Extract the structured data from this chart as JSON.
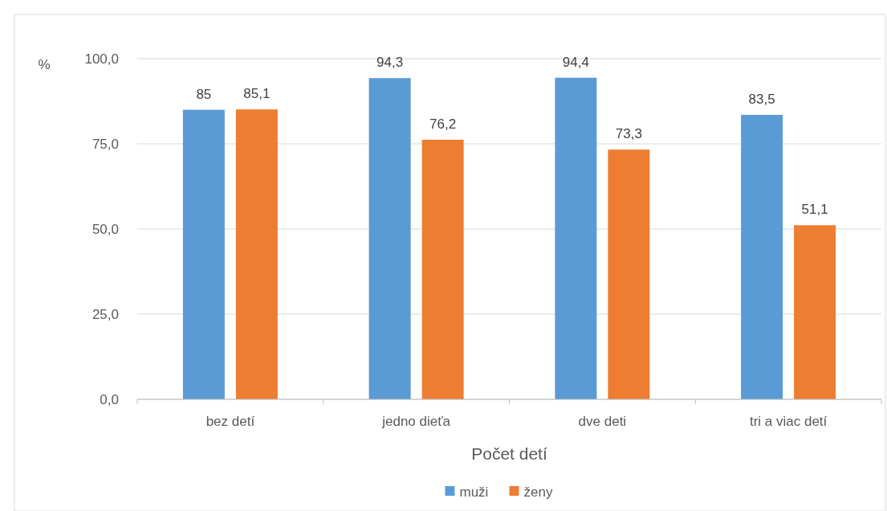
{
  "chart_data": {
    "type": "bar",
    "xlabel": "Počet detí",
    "ylabel": "%",
    "categories": [
      "bez detí",
      "jedno dieťa",
      "dve deti",
      "tri a viac detí"
    ],
    "series": [
      {
        "name": "muži",
        "color": "#5b9bd5",
        "values": [
          85,
          94.3,
          94.4,
          83.5
        ],
        "value_labels": [
          "85",
          "94,3",
          "94,4",
          "83,5"
        ]
      },
      {
        "name": "ženy",
        "color": "#ed7d31",
        "values": [
          85.1,
          76.2,
          73.3,
          51.1
        ],
        "value_labels": [
          "85,1",
          "76,2",
          "73,3",
          "51,1"
        ]
      }
    ],
    "ylim": [
      0,
      100
    ],
    "yticks": [
      {
        "value": 0,
        "label": "0,0"
      },
      {
        "value": 25,
        "label": "25,0"
      },
      {
        "value": 50,
        "label": "50,0"
      },
      {
        "value": 75,
        "label": "75,0"
      },
      {
        "value": 100,
        "label": "100,0"
      }
    ],
    "grid": "y",
    "legend": "bottom"
  }
}
